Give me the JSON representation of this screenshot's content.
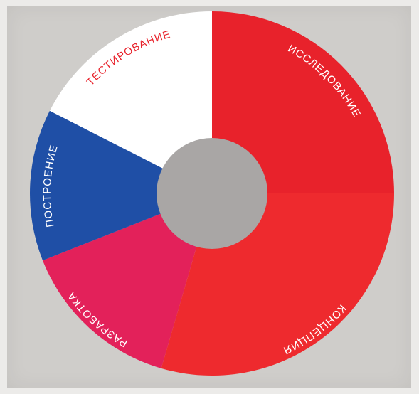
{
  "chart_data": {
    "type": "donut",
    "title": "",
    "segments": [
      {
        "label": "ИССЛЕДОВАНИЕ",
        "value": 25,
        "color": "#e8222b",
        "label_color": "#ffffff"
      },
      {
        "label": "КОНЦЕПЦИЯ",
        "value": 29.5,
        "color": "#ee2a2e",
        "label_color": "#ffffff"
      },
      {
        "label": "РАЗРАБОТКА",
        "value": 14.5,
        "color": "#e3215a",
        "label_color": "#ffffff"
      },
      {
        "label": "ПОСТРОЕНИЕ",
        "value": 13.5,
        "color": "#1f4fa6",
        "label_color": "#ffffff"
      },
      {
        "label": "ТЕСТИРОВАНИЕ",
        "value": 17.5,
        "color": "#ffffff",
        "label_color": "#e8222b"
      }
    ],
    "center_color": "#a9a6a5"
  }
}
